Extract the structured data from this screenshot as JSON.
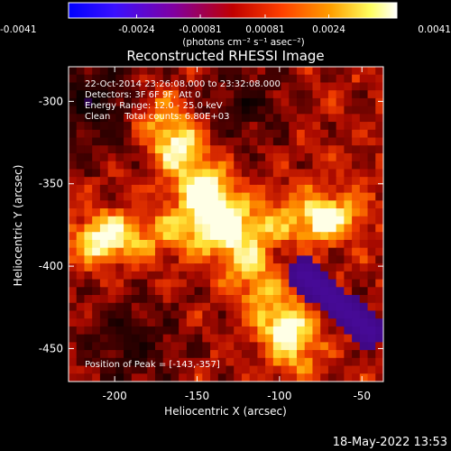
{
  "colorbar": {
    "ticks": [
      {
        "value": -0.0041,
        "label": "-0.0041"
      },
      {
        "value": -0.0024,
        "label": "-0.0024"
      },
      {
        "value": -0.00081,
        "label": "-0.00081"
      },
      {
        "value": 0.00081,
        "label": "0.00081"
      },
      {
        "value": 0.0024,
        "label": "0.0024"
      },
      {
        "value": 0.0041,
        "label": "0.0041"
      }
    ],
    "range": [
      -0.0041,
      0.0041
    ],
    "unit_label": "(photons cm⁻² s⁻¹ asec⁻²)",
    "colors": [
      "#0000ff",
      "#4a00c0",
      "#7a0070",
      "#c00000",
      "#ff4a00",
      "#ffa000",
      "#ffff60",
      "#ffffff"
    ]
  },
  "title": "Reconstructed RHESSI Image",
  "info": {
    "time_range": "22-Oct-2014 23:26:08.000 to 23:32:08.000",
    "detectors": "Detectors: 3F 6F 9F, Att 0",
    "energy": "Energy Range: 12.0 - 25.0 keV",
    "clean": "Clean     Total counts: 6.80E+03",
    "peak": "Position of Peak = [-143,-357]"
  },
  "xaxis": {
    "label": "Heliocentric X (arcsec)",
    "range": [
      -228,
      -37
    ],
    "ticks": [
      -200,
      -150,
      -100,
      -50
    ],
    "tick_labels": [
      "-200",
      "-150",
      "-100",
      "-50"
    ]
  },
  "yaxis": {
    "label": "Heliocentric Y (arcsec)",
    "range": [
      -470,
      -279
    ],
    "ticks": [
      -300,
      -350,
      -400,
      -450
    ],
    "tick_labels": [
      "-300",
      "-350",
      "-400",
      "-450"
    ]
  },
  "image_features": {
    "peak": [
      -143,
      -357
    ],
    "bright_sources": [
      {
        "x": -143,
        "y": -357,
        "level": 1.0
      },
      {
        "x": -205,
        "y": -382,
        "level": 0.8
      },
      {
        "x": -75,
        "y": -372,
        "level": 0.75
      },
      {
        "x": -95,
        "y": -440,
        "level": 0.6
      },
      {
        "x": -160,
        "y": -325,
        "level": 0.6
      }
    ],
    "negative_region": {
      "x": -62,
      "y": -420,
      "level": -0.8
    }
  },
  "footer": {
    "date": "18-May-2022 13:53"
  }
}
